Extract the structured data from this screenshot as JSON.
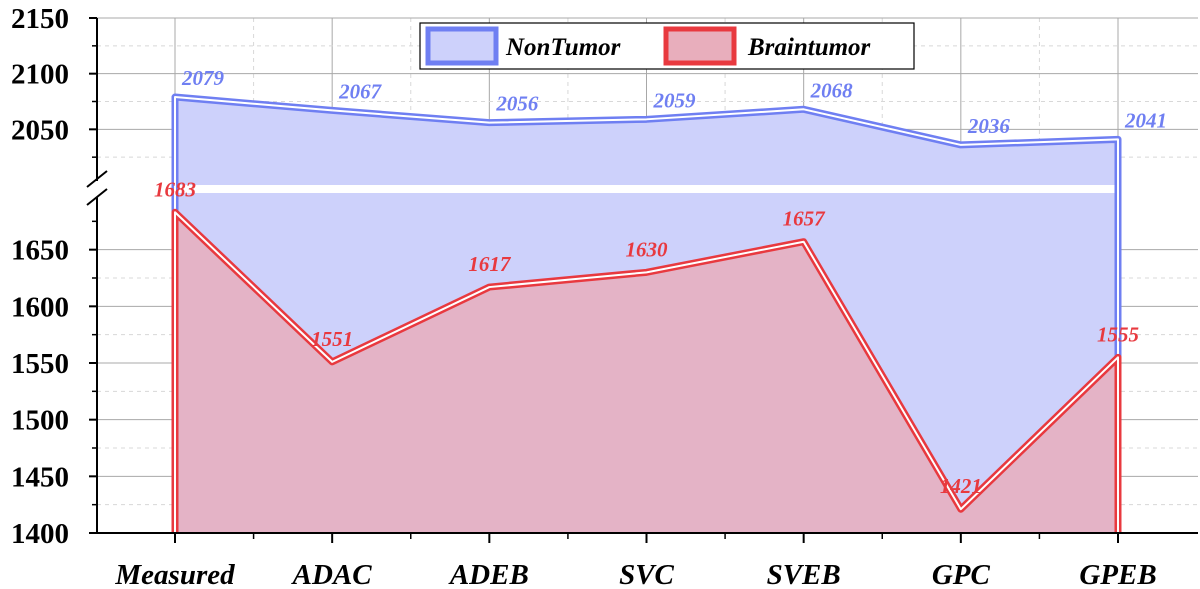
{
  "chart_data": {
    "type": "area",
    "categories": [
      "Measured",
      "ADAC",
      "ADEB",
      "SVC",
      "SVEB",
      "GPC",
      "GPEB"
    ],
    "series": [
      {
        "name": "NonTumor",
        "values": [
          2079,
          2067,
          2056,
          2059,
          2068,
          2036,
          2041
        ],
        "labels": [
          "2079",
          "2067",
          "2056",
          "2059",
          "2068",
          "2036",
          "2041"
        ],
        "color": "#6f7ff2",
        "fill": "#cdd1fb"
      },
      {
        "name": "Braintumor",
        "values": [
          1683,
          1551,
          1617,
          1630,
          1657,
          1421,
          1555
        ],
        "labels": [
          "1683",
          "1551",
          "1617",
          "1630",
          "1657",
          "1421",
          "1555"
        ],
        "color": "#e8393f",
        "fill": "#e8aebc"
      }
    ],
    "y_axis_break": {
      "lower_range": [
        1400,
        1700
      ],
      "upper_range": [
        2000,
        2150
      ]
    },
    "y_ticks_lower": [
      "1400",
      "1450",
      "1500",
      "1550",
      "1600",
      "1650"
    ],
    "y_ticks_upper": [
      "2050",
      "2100",
      "2150"
    ],
    "ylim": [
      1400,
      2150
    ],
    "grid": true,
    "legend_position": "top-center"
  }
}
